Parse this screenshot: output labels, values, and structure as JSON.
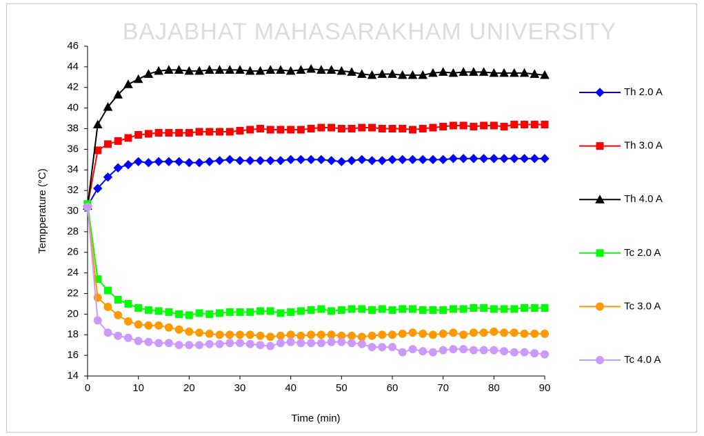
{
  "chart_data": {
    "type": "line",
    "watermark": "BAJABHAT MAHASARAKHAM UNIVERSITY",
    "xlabel": "Time (min)",
    "ylabel": "Tempperature (°C)",
    "x": [
      0,
      2,
      4,
      6,
      8,
      10,
      12,
      14,
      16,
      18,
      20,
      22,
      24,
      26,
      28,
      30,
      32,
      34,
      36,
      38,
      40,
      42,
      44,
      46,
      48,
      50,
      52,
      54,
      56,
      58,
      60,
      62,
      64,
      66,
      68,
      70,
      72,
      74,
      76,
      78,
      80,
      82,
      84,
      86,
      88,
      90
    ],
    "xlim": [
      0,
      90
    ],
    "xticks": [
      0,
      10,
      20,
      30,
      40,
      50,
      60,
      70,
      80,
      90
    ],
    "ylim": [
      14,
      46
    ],
    "yticks": [
      14,
      16,
      18,
      20,
      22,
      24,
      26,
      28,
      30,
      32,
      34,
      36,
      38,
      40,
      42,
      44,
      46
    ],
    "grid": false,
    "legend": "right",
    "series": [
      {
        "name": "Th 2.0 A",
        "color": "#0000ff",
        "marker": "diamond",
        "values": [
          30.5,
          32.2,
          33.3,
          34.2,
          34.5,
          34.8,
          34.7,
          34.8,
          34.8,
          34.8,
          34.7,
          34.7,
          34.8,
          34.9,
          35.0,
          34.9,
          34.9,
          34.9,
          34.9,
          34.9,
          35.0,
          35.0,
          35.0,
          35.0,
          34.9,
          34.8,
          34.9,
          35.0,
          34.9,
          34.9,
          35.0,
          35.0,
          35.0,
          35.0,
          35.0,
          35.0,
          35.1,
          35.1,
          35.1,
          35.1,
          35.1,
          35.1,
          35.1,
          35.1,
          35.1,
          35.1
        ]
      },
      {
        "name": "Th 3.0 A",
        "color": "#ff0000",
        "marker": "square",
        "values": [
          30.5,
          35.9,
          36.5,
          36.8,
          37.1,
          37.4,
          37.5,
          37.6,
          37.6,
          37.6,
          37.6,
          37.7,
          37.7,
          37.7,
          37.7,
          37.8,
          37.9,
          38.0,
          37.9,
          37.9,
          37.9,
          37.9,
          38.0,
          38.1,
          38.1,
          38.0,
          38.0,
          38.1,
          38.1,
          38.0,
          38.0,
          38.0,
          37.9,
          38.0,
          38.1,
          38.2,
          38.3,
          38.3,
          38.2,
          38.3,
          38.3,
          38.2,
          38.4,
          38.4,
          38.4,
          38.4
        ]
      },
      {
        "name": "Th 4.0 A",
        "color": "#000000",
        "marker": "triangle",
        "values": [
          30.5,
          38.4,
          40.1,
          41.3,
          42.3,
          42.8,
          43.3,
          43.6,
          43.7,
          43.7,
          43.6,
          43.6,
          43.7,
          43.7,
          43.7,
          43.7,
          43.6,
          43.6,
          43.7,
          43.7,
          43.6,
          43.7,
          43.8,
          43.7,
          43.7,
          43.6,
          43.5,
          43.3,
          43.2,
          43.3,
          43.3,
          43.2,
          43.2,
          43.2,
          43.4,
          43.5,
          43.4,
          43.5,
          43.5,
          43.5,
          43.4,
          43.4,
          43.4,
          43.4,
          43.3,
          43.2
        ]
      },
      {
        "name": "Tc 2.0 A",
        "color": "#00ff00",
        "marker": "square",
        "values": [
          30.7,
          23.4,
          22.3,
          21.4,
          21.0,
          20.6,
          20.4,
          20.3,
          20.2,
          20.0,
          19.9,
          20.1,
          20.0,
          20.1,
          20.2,
          20.2,
          20.2,
          20.3,
          20.3,
          20.1,
          20.2,
          20.3,
          20.4,
          20.5,
          20.3,
          20.4,
          20.5,
          20.5,
          20.4,
          20.5,
          20.4,
          20.5,
          20.5,
          20.4,
          20.4,
          20.4,
          20.5,
          20.5,
          20.6,
          20.6,
          20.5,
          20.5,
          20.5,
          20.6,
          20.6,
          20.6
        ]
      },
      {
        "name": "Tc 3.0 A",
        "color": "#ff9900",
        "marker": "circle",
        "values": [
          30.4,
          21.6,
          20.7,
          19.9,
          19.3,
          19.0,
          18.9,
          18.9,
          18.7,
          18.5,
          18.3,
          18.2,
          18.1,
          18.0,
          18.0,
          18.0,
          18.0,
          17.9,
          17.8,
          17.9,
          18.0,
          17.9,
          18.0,
          18.0,
          18.0,
          17.9,
          17.9,
          17.8,
          17.9,
          18.0,
          18.0,
          18.1,
          18.2,
          18.1,
          18.0,
          18.1,
          18.2,
          18.0,
          18.2,
          18.2,
          18.3,
          18.2,
          18.2,
          18.1,
          18.1,
          18.1
        ]
      },
      {
        "name": "Tc 4.0 A",
        "color": "#cc99ff",
        "marker": "circle",
        "values": [
          30.4,
          19.4,
          18.2,
          17.9,
          17.7,
          17.4,
          17.3,
          17.2,
          17.2,
          17.0,
          17.0,
          17.0,
          17.1,
          17.1,
          17.2,
          17.2,
          17.1,
          17.0,
          16.9,
          17.2,
          17.3,
          17.2,
          17.2,
          17.2,
          17.3,
          17.3,
          17.2,
          17.1,
          16.8,
          16.8,
          16.8,
          16.3,
          16.6,
          16.4,
          16.3,
          16.5,
          16.6,
          16.6,
          16.5,
          16.5,
          16.5,
          16.4,
          16.3,
          16.3,
          16.2,
          16.1
        ]
      }
    ]
  }
}
